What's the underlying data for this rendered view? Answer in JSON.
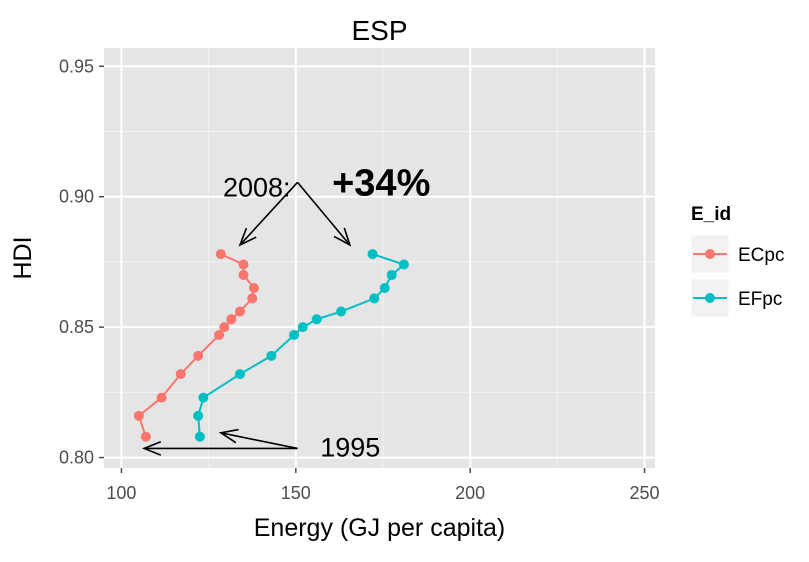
{
  "chart_data": {
    "type": "line",
    "title": "ESP",
    "xlabel": "Energy (GJ per capita)",
    "ylabel": "HDI",
    "xlim": [
      95,
      253
    ],
    "ylim": [
      0.796,
      0.957
    ],
    "x_ticks": [
      100,
      150,
      200,
      250
    ],
    "x_tick_labels": [
      "100",
      "150",
      "200",
      "250"
    ],
    "y_ticks": [
      0.8,
      0.85,
      0.9,
      0.95
    ],
    "y_tick_labels": [
      "0.80",
      "0.85",
      "0.90",
      "0.95"
    ],
    "grid": true,
    "legend": {
      "title": "E_id",
      "position": "right"
    },
    "series": [
      {
        "name": "ECpc",
        "color": "#F8766D",
        "points": [
          [
            107,
            0.808
          ],
          [
            105,
            0.816
          ],
          [
            111.5,
            0.823
          ],
          [
            117,
            0.832
          ],
          [
            122,
            0.839
          ],
          [
            128,
            0.847
          ],
          [
            129.5,
            0.85
          ],
          [
            131.5,
            0.853
          ],
          [
            134,
            0.856
          ],
          [
            137.5,
            0.861
          ],
          [
            138,
            0.865
          ],
          [
            135,
            0.87
          ],
          [
            135,
            0.874
          ],
          [
            128.5,
            0.878
          ]
        ]
      },
      {
        "name": "EFpc",
        "color": "#00BFC4",
        "points": [
          [
            122.5,
            0.808
          ],
          [
            122,
            0.816
          ],
          [
            123.5,
            0.823
          ],
          [
            134,
            0.832
          ],
          [
            143,
            0.839
          ],
          [
            149.5,
            0.847
          ],
          [
            152,
            0.85
          ],
          [
            156,
            0.853
          ],
          [
            163,
            0.856
          ],
          [
            172.5,
            0.861
          ],
          [
            175.5,
            0.865
          ],
          [
            177.5,
            0.87
          ],
          [
            181,
            0.874
          ],
          [
            172,
            0.878
          ]
        ]
      }
    ],
    "annotations": [
      {
        "id": "label-2008",
        "text": "2008:",
        "text_at": [
          148.5,
          0.9
        ],
        "anchor": "end",
        "style": "normal",
        "arrows": [
          {
            "from": [
              150.5,
              0.9055
            ],
            "to": [
              134,
              0.8815
            ]
          },
          {
            "from": [
              150.5,
              0.9055
            ],
            "to": [
              165.5,
              0.8815
            ]
          }
        ]
      },
      {
        "id": "label-increase",
        "text": "+34%",
        "text_at": [
          174.5,
          0.9005
        ],
        "anchor": "middle",
        "style": "bold",
        "arrows": []
      },
      {
        "id": "label-1995",
        "text": "1995",
        "text_at": [
          157,
          0.8005
        ],
        "anchor": "start",
        "style": "normal",
        "arrows": [
          {
            "from": [
              150.5,
              0.8035
            ],
            "to": [
              106.5,
              0.8035
            ]
          },
          {
            "from": [
              150.5,
              0.8035
            ],
            "to": [
              128.5,
              0.8095
            ]
          }
        ]
      }
    ]
  }
}
